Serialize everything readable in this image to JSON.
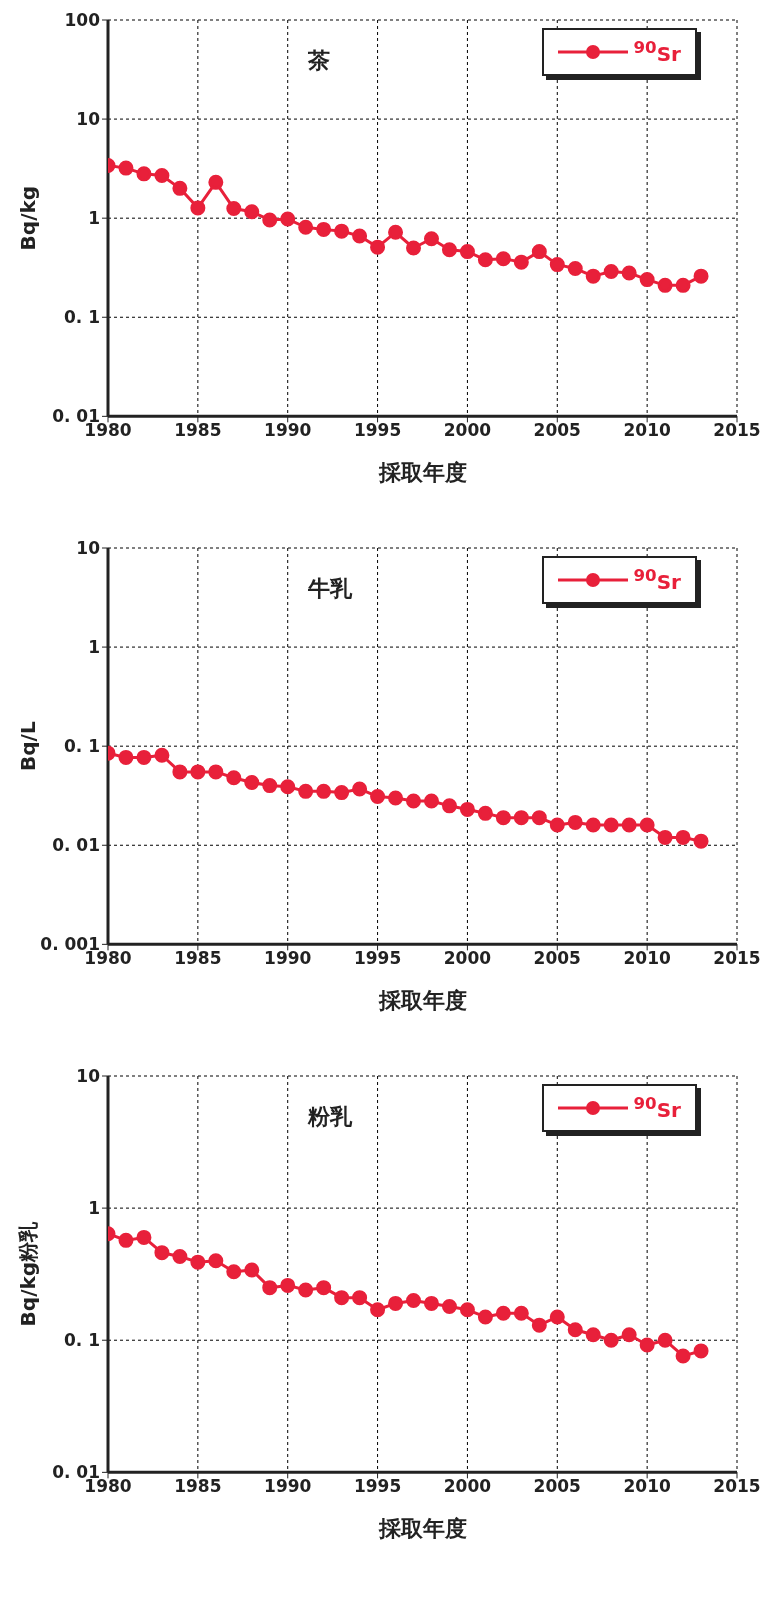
{
  "chart_data": [
    {
      "type": "line",
      "title": "茶",
      "xlabel": "採取年度",
      "ylabel": "Bq/kg",
      "log": true,
      "grid": true,
      "legend": "top right",
      "marker": "circle",
      "line_style": "solid",
      "xlim": [
        1980,
        2015
      ],
      "xticks": [
        1980,
        1985,
        1990,
        1995,
        2000,
        2005,
        2010,
        2015
      ],
      "ylim": [
        0.01,
        100
      ],
      "yticks": [
        {
          "value": 0.01,
          "label": "0. 01"
        },
        {
          "value": 0.1,
          "label": "0. 1"
        },
        1,
        10,
        100
      ],
      "x": [
        1980,
        1981,
        1982,
        1983,
        1984,
        1985,
        1986,
        1987,
        1988,
        1989,
        1990,
        1991,
        1992,
        1993,
        1994,
        1995,
        1996,
        1997,
        1998,
        1999,
        2000,
        2001,
        2002,
        2003,
        2004,
        2005,
        2006,
        2007,
        2008,
        2009,
        2010,
        2011,
        2012,
        2013
      ],
      "series": [
        {
          "name": "$^{90}$Sr",
          "color": "#e8203a",
          "values": [
            3.4,
            3.2,
            2.8,
            2.7,
            2.0,
            1.27,
            2.3,
            1.25,
            1.16,
            0.96,
            0.98,
            0.81,
            0.77,
            0.74,
            0.66,
            0.51,
            0.72,
            0.5,
            0.62,
            0.48,
            0.46,
            0.38,
            0.39,
            0.36,
            0.46,
            0.34,
            0.31,
            0.26,
            0.29,
            0.28,
            0.24,
            0.21,
            0.21,
            0.26
          ]
        }
      ]
    },
    {
      "type": "line",
      "title": "牛乳",
      "xlabel": "採取年度",
      "ylabel": "Bq/L",
      "log": true,
      "grid": true,
      "legend": "top right",
      "marker": "circle",
      "line_style": "solid",
      "xlim": [
        1980,
        2015
      ],
      "xticks": [
        1980,
        1985,
        1990,
        1995,
        2000,
        2005,
        2010,
        2015
      ],
      "ylim": [
        0.001,
        10
      ],
      "yticks": [
        {
          "value": 0.001,
          "label": "0. 001"
        },
        {
          "value": 0.01,
          "label": "0. 01"
        },
        {
          "value": 0.1,
          "label": "0. 1"
        },
        1,
        10
      ],
      "x": [
        1980,
        1981,
        1982,
        1983,
        1984,
        1985,
        1986,
        1987,
        1988,
        1989,
        1990,
        1991,
        1992,
        1993,
        1994,
        1995,
        1996,
        1997,
        1998,
        1999,
        2000,
        2001,
        2002,
        2003,
        2004,
        2005,
        2006,
        2007,
        2008,
        2009,
        2010,
        2011,
        2012,
        2013
      ],
      "series": [
        {
          "name": "$^{90}$Sr",
          "color": "#e8203a",
          "values": [
            0.085,
            0.077,
            0.077,
            0.081,
            0.055,
            0.055,
            0.055,
            0.048,
            0.043,
            0.04,
            0.039,
            0.035,
            0.035,
            0.034,
            0.037,
            0.031,
            0.03,
            0.028,
            0.028,
            0.025,
            0.023,
            0.021,
            0.019,
            0.019,
            0.019,
            0.016,
            0.017,
            0.016,
            0.016,
            0.016,
            0.016,
            0.012,
            0.012,
            0.011
          ]
        }
      ]
    },
    {
      "type": "line",
      "title": "粉乳",
      "xlabel": "採取年度",
      "ylabel": "Bq/kg粉乳",
      "log": true,
      "grid": true,
      "legend": "top right",
      "marker": "circle",
      "line_style": "solid",
      "xlim": [
        1980,
        2015
      ],
      "xticks": [
        1980,
        1985,
        1990,
        1995,
        2000,
        2005,
        2010,
        2015
      ],
      "ylim": [
        0.01,
        10
      ],
      "yticks": [
        {
          "value": 0.01,
          "label": "0. 01"
        },
        {
          "value": 0.1,
          "label": "0. 1"
        },
        1,
        10
      ],
      "x": [
        1980,
        1981,
        1982,
        1983,
        1984,
        1985,
        1986,
        1987,
        1988,
        1989,
        1990,
        1991,
        1992,
        1993,
        1994,
        1995,
        1996,
        1997,
        1998,
        1999,
        2000,
        2001,
        2002,
        2003,
        2004,
        2005,
        2006,
        2007,
        2008,
        2009,
        2010,
        2011,
        2012,
        2013
      ],
      "series": [
        {
          "name": "$^{90}$Sr",
          "color": "#e8203a",
          "values": [
            0.64,
            0.57,
            0.6,
            0.46,
            0.43,
            0.39,
            0.4,
            0.33,
            0.34,
            0.25,
            0.26,
            0.24,
            0.25,
            0.21,
            0.21,
            0.17,
            0.19,
            0.2,
            0.19,
            0.18,
            0.17,
            0.15,
            0.16,
            0.16,
            0.13,
            0.15,
            0.12,
            0.11,
            0.1,
            0.11,
            0.092,
            0.1,
            0.076,
            0.083
          ]
        }
      ]
    }
  ]
}
